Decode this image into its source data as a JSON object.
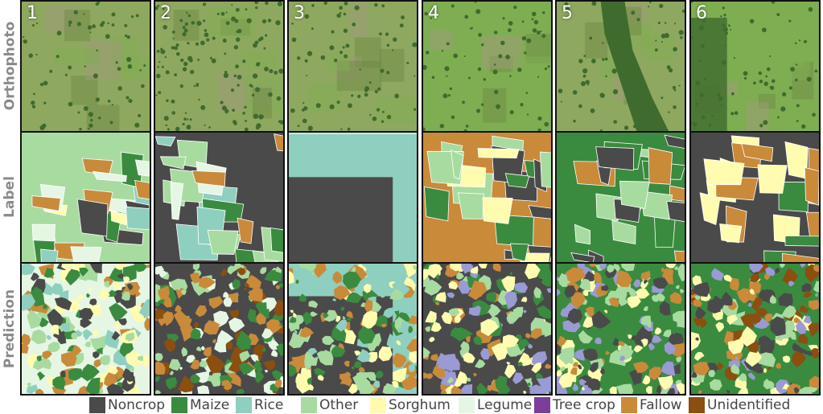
{
  "rows": [
    {
      "label": "Orthophoto"
    },
    {
      "label": "Label"
    },
    {
      "label": "Prediction"
    }
  ],
  "columns": [
    "1",
    "2",
    "3",
    "4",
    "5",
    "6"
  ],
  "legend": [
    {
      "name": "Noncrop",
      "color": "#4a4a4a"
    },
    {
      "name": "Maize",
      "color": "#3a8b3f"
    },
    {
      "name": "Rice",
      "color": "#8fcfbf"
    },
    {
      "name": "Other",
      "color": "#a8dba0"
    },
    {
      "name": "Sorghum",
      "color": "#fffcb0"
    },
    {
      "name": "Legume",
      "color": "#e6f6e4"
    },
    {
      "name": "Tree crop",
      "color": "#7b3f99"
    },
    {
      "name": "Fallow",
      "color": "#c98a3a"
    },
    {
      "name": "Unidentified",
      "color": "#8b4f10"
    }
  ],
  "photo_colors": {
    "grass": "#8fa860",
    "grass_dark": "#6f8a45",
    "forest": "#3f6b2e",
    "soil": "#a09a7a",
    "field": "#7fae52"
  },
  "extra_colors": {
    "purple_light": "#9a9ad4"
  }
}
